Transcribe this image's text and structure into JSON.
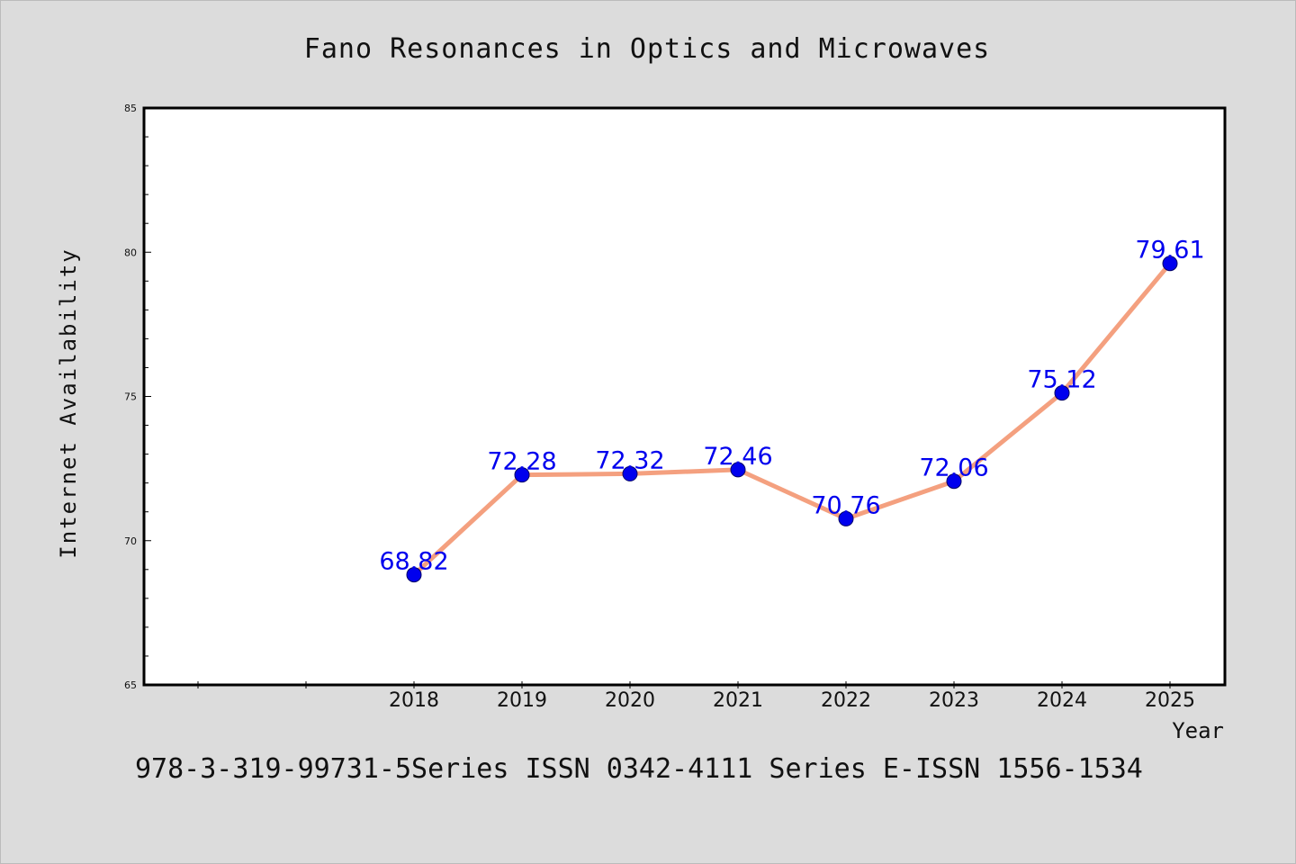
{
  "chart_data": {
    "type": "line",
    "title": "Fano Resonances in Optics and Microwaves",
    "xlabel": "Year",
    "ylabel": "Internet Availability",
    "footer": "978-3-319-99731-5Series ISSN 0342-4111 Series E-ISSN 1556-1534",
    "x": [
      "2018",
      "2019",
      "2020",
      "2021",
      "2022",
      "2023",
      "2024",
      "2025"
    ],
    "values": [
      68.82,
      72.28,
      72.32,
      72.46,
      70.76,
      72.06,
      75.12,
      79.61
    ],
    "data_labels": [
      "68.82",
      "72.28",
      "72.32",
      "72.46",
      "70.76",
      "72.06",
      "75.12",
      "79.61"
    ],
    "ylim": [
      65,
      85
    ],
    "yticks": [
      "65",
      "70",
      "75",
      "80",
      "85"
    ],
    "grid": false,
    "colors": {
      "line": "#f4a07f",
      "marker": "#0000ee",
      "label": "#0000ee",
      "background": "#dcdcdc",
      "plot_bg": "#ffffff"
    }
  }
}
